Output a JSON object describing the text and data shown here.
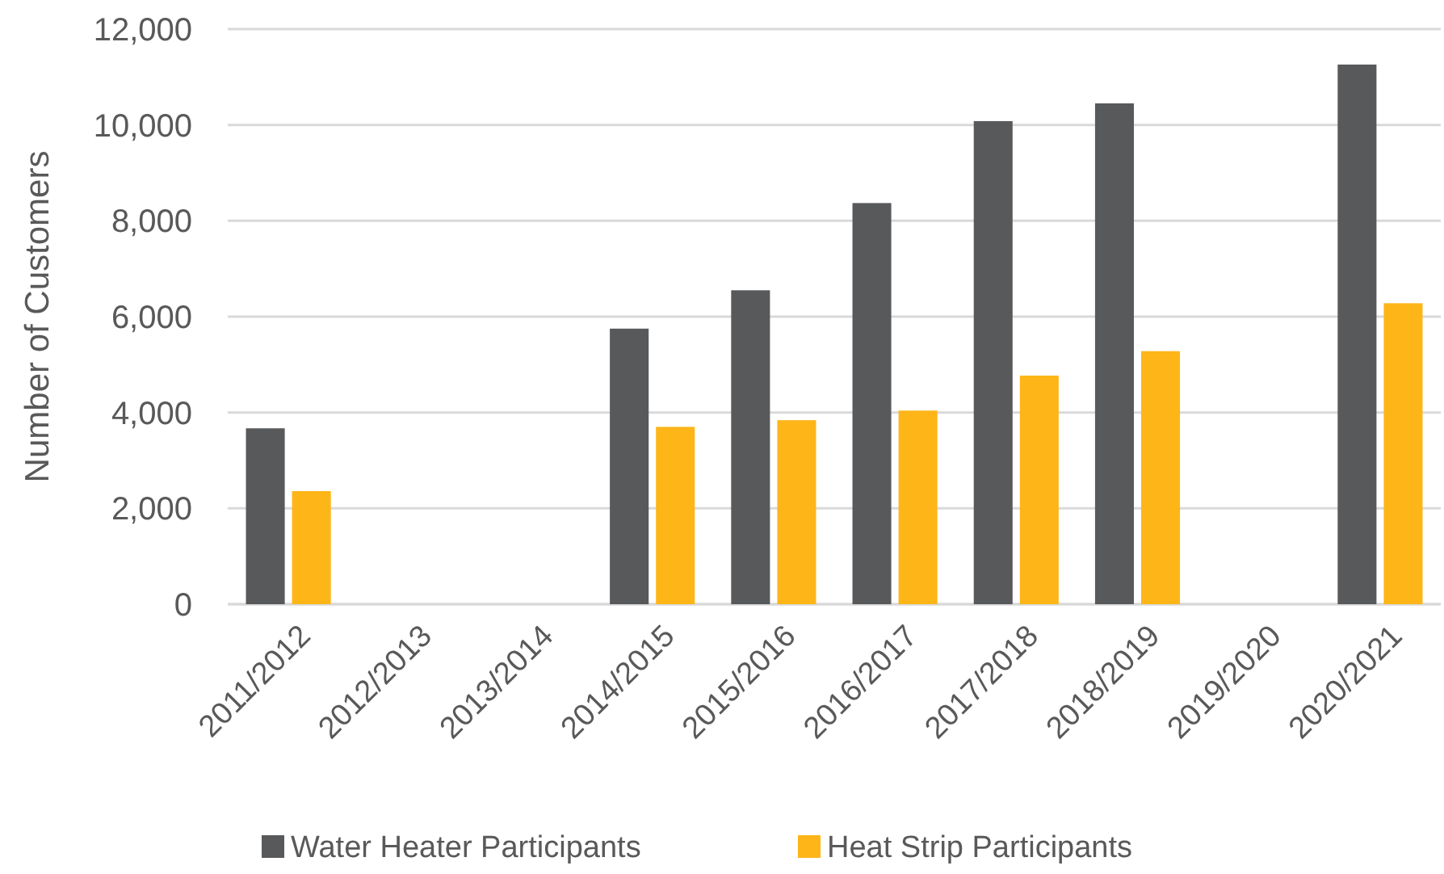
{
  "chart_data": {
    "type": "bar",
    "ylabel": "Number of Customers",
    "categories": [
      "2011/2012",
      "2012/2013",
      "2013/2014",
      "2014/2015",
      "2015/2016",
      "2016/2017",
      "2017/2018",
      "2018/2019",
      "2019/2020",
      "2020/2021"
    ],
    "series": [
      {
        "name": "Water Heater Participants",
        "color": "#58595b",
        "values": [
          3670,
          null,
          null,
          5750,
          6550,
          8370,
          10080,
          10450,
          null,
          11260
        ]
      },
      {
        "name": "Heat Strip Participants",
        "color": "#fdb518",
        "values": [
          2360,
          null,
          null,
          3700,
          3840,
          4040,
          4770,
          5280,
          null,
          6280
        ]
      }
    ],
    "ylim": [
      0,
      12000
    ],
    "yticks": [
      {
        "value": 0,
        "label": "0"
      },
      {
        "value": 2000,
        "label": "2,000"
      },
      {
        "value": 4000,
        "label": "4,000"
      },
      {
        "value": 6000,
        "label": "6,000"
      },
      {
        "value": 8000,
        "label": "8,000"
      },
      {
        "value": 10000,
        "label": "10,000"
      },
      {
        "value": 12000,
        "label": "12,000"
      }
    ],
    "grid": "y",
    "legend": "bottom"
  }
}
